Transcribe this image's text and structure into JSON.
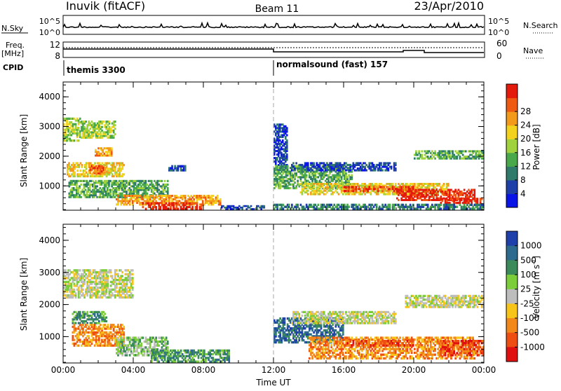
{
  "header": {
    "station": "Inuvik (fitACF)",
    "beam": "Beam 11",
    "date": "23/Apr/2010"
  },
  "top_panels": {
    "nsky_label": "N.Sky",
    "nsky_ticks": [
      "10^5",
      "10^0"
    ],
    "nsearch_label": "N.Search",
    "nsearch_ticks": [
      "10^5",
      "10^0"
    ],
    "freq_label": "Freq.",
    "freq_unit": "[MHz]",
    "freq_ticks": [
      "12",
      "8"
    ],
    "nave_label": "Nave",
    "nave_ticks": [
      "60",
      "0"
    ],
    "cpid_label": "CPID",
    "cpid_segments": [
      {
        "label": "themis 3300",
        "start_hour": 0,
        "end_hour": 12
      },
      {
        "label": "normalsound (fast) 157",
        "start_hour": 12,
        "end_hour": 24
      }
    ]
  },
  "chart_data": [
    {
      "type": "heatmap",
      "name": "power",
      "ylabel": "Slant Range [km]",
      "xlabel": "Time UT",
      "x_range_hours": [
        0,
        24
      ],
      "ylim": [
        180,
        4500
      ],
      "y_ticks": [
        1000,
        2000,
        3000,
        4000
      ],
      "x_tick_labels": [
        "00:00",
        "04:00",
        "08:00",
        "12:00",
        "16:00",
        "20:00",
        "00:00"
      ],
      "colorbar": {
        "label": "Power [dB]",
        "ticks": [
          "4",
          "8",
          "12",
          "16",
          "20",
          "24",
          "28"
        ],
        "colors": [
          "#0a14e6",
          "#1f3fa8",
          "#2f7a6a",
          "#48a84a",
          "#9fd23c",
          "#f2d21c",
          "#f39a1a",
          "#ee5a12",
          "#e41a0c"
        ]
      },
      "regions": [
        {
          "t0": 0.0,
          "t1": 1.0,
          "r0": 2500,
          "r1": 3300,
          "level": 4
        },
        {
          "t0": 1.0,
          "t1": 3.0,
          "r0": 2600,
          "r1": 3200,
          "level": 4
        },
        {
          "t0": 1.8,
          "t1": 2.8,
          "r0": 2000,
          "r1": 2300,
          "level": 6
        },
        {
          "t0": 0.2,
          "t1": 3.5,
          "r0": 1300,
          "r1": 1800,
          "level": 5
        },
        {
          "t0": 1.5,
          "t1": 2.5,
          "r0": 1400,
          "r1": 1700,
          "level": 7
        },
        {
          "t0": 0.3,
          "t1": 6.0,
          "r0": 600,
          "r1": 1200,
          "level": 3
        },
        {
          "t0": 3.0,
          "t1": 9.0,
          "r0": 350,
          "r1": 700,
          "level": 6
        },
        {
          "t0": 4.5,
          "t1": 8.0,
          "r0": 200,
          "r1": 450,
          "level": 8
        },
        {
          "t0": 6.0,
          "t1": 7.0,
          "r0": 1500,
          "r1": 1700,
          "level": 1
        },
        {
          "t0": 9.0,
          "t1": 11.5,
          "r0": 200,
          "r1": 350,
          "level": 1
        },
        {
          "t0": 12.0,
          "t1": 12.8,
          "r0": 1500,
          "r1": 3100,
          "level": 1
        },
        {
          "t0": 12.0,
          "t1": 16.5,
          "r0": 900,
          "r1": 1700,
          "level": 3
        },
        {
          "t0": 13.0,
          "t1": 19.0,
          "r0": 1500,
          "r1": 1800,
          "level": 1
        },
        {
          "t0": 13.5,
          "t1": 22.0,
          "r0": 700,
          "r1": 1100,
          "level": 5
        },
        {
          "t0": 16.0,
          "t1": 20.0,
          "r0": 800,
          "r1": 1000,
          "level": 7
        },
        {
          "t0": 19.0,
          "t1": 23.5,
          "r0": 500,
          "r1": 900,
          "level": 8
        },
        {
          "t0": 20.0,
          "t1": 24.0,
          "r0": 1900,
          "r1": 2200,
          "level": 3
        },
        {
          "t0": 21.5,
          "t1": 24.0,
          "r0": 400,
          "r1": 600,
          "level": 8
        },
        {
          "t0": 12.0,
          "t1": 24.0,
          "r0": 200,
          "r1": 400,
          "level": 2
        }
      ]
    },
    {
      "type": "heatmap",
      "name": "velocity",
      "ylabel": "Slant Range [km]",
      "xlabel": "Time UT",
      "x_range_hours": [
        0,
        24
      ],
      "ylim": [
        180,
        4500
      ],
      "y_ticks": [
        1000,
        2000,
        3000,
        4000
      ],
      "x_tick_labels": [
        "00:00",
        "04:00",
        "08:00",
        "12:00",
        "16:00",
        "20:00",
        "00:00"
      ],
      "colorbar": {
        "label": "Velocity [m s",
        "label_sup": "-1",
        "ticks": [
          "1000",
          "500",
          "100",
          "25",
          "-25",
          "-100",
          "-500",
          "-1000"
        ],
        "colors": [
          "#1f3faa",
          "#2d6a8e",
          "#3a8a5a",
          "#7ccd3a",
          "#bdbdbd",
          "#f7c51a",
          "#f2881a",
          "#ee4e12",
          "#e01010"
        ]
      },
      "regions": [
        {
          "t0": 0.0,
          "t1": 4.0,
          "r0": 2200,
          "r1": 3100,
          "level": 4
        },
        {
          "t0": 0.5,
          "t1": 2.5,
          "r0": 1400,
          "r1": 1800,
          "level": 2
        },
        {
          "t0": 0.5,
          "t1": 3.5,
          "r0": 700,
          "r1": 1400,
          "level": 6
        },
        {
          "t0": 3.0,
          "t1": 6.0,
          "r0": 400,
          "r1": 1000,
          "level": 3
        },
        {
          "t0": 5.0,
          "t1": 9.5,
          "r0": 200,
          "r1": 600,
          "level": 2
        },
        {
          "t0": 12.0,
          "t1": 16.0,
          "r0": 800,
          "r1": 1600,
          "level": 1
        },
        {
          "t0": 13.0,
          "t1": 19.0,
          "r0": 1400,
          "r1": 1800,
          "level": 4
        },
        {
          "t0": 14.0,
          "t1": 23.5,
          "r0": 300,
          "r1": 1000,
          "level": 6
        },
        {
          "t0": 16.0,
          "t1": 20.0,
          "r0": 700,
          "r1": 900,
          "level": 7
        },
        {
          "t0": 19.5,
          "t1": 24.0,
          "r0": 1900,
          "r1": 2300,
          "level": 4
        },
        {
          "t0": 21.5,
          "t1": 24.0,
          "r0": 400,
          "r1": 900,
          "level": 7
        }
      ]
    }
  ]
}
